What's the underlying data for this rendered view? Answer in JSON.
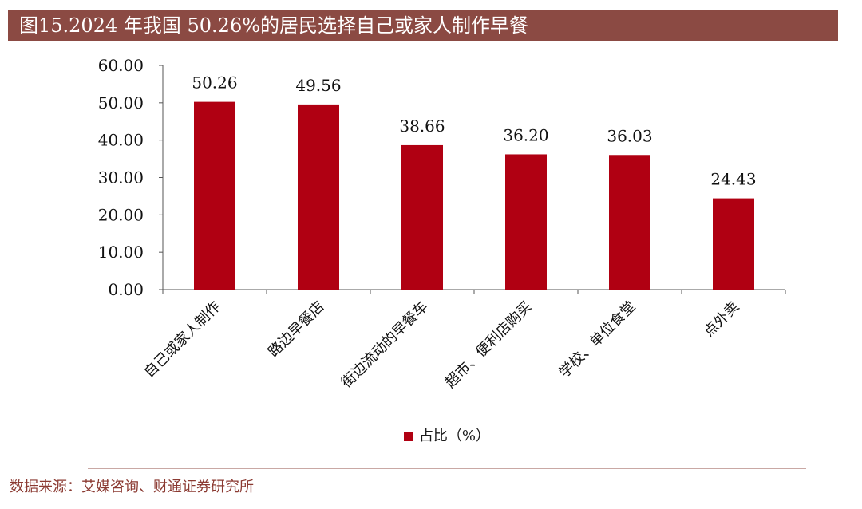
{
  "header": {
    "title": "图15.2024 年我国 50.26%的居民选择自己或家人制作早餐"
  },
  "colors": {
    "title_bg": "#8b4a43",
    "bar": "#b00012",
    "source_text": "#8b3a32"
  },
  "chart_data": {
    "type": "bar",
    "categories": [
      "自己或家人制作",
      "路边早餐店",
      "街边流动的早餐车",
      "超市、便利店购买",
      "学校、单位食堂",
      "点外卖"
    ],
    "series": [
      {
        "name": "占比（%）",
        "values": [
          50.26,
          49.56,
          38.66,
          36.2,
          36.03,
          24.43
        ]
      }
    ],
    "data_labels": [
      "50.26",
      "49.56",
      "38.66",
      "36.20",
      "36.03",
      "24.43"
    ],
    "yticks": [
      "0.00",
      "10.00",
      "20.00",
      "30.00",
      "40.00",
      "50.00",
      "60.00"
    ],
    "ylim": [
      0,
      60
    ],
    "grid": false,
    "legend_position": "bottom"
  },
  "legend": {
    "label": "占比（%）"
  },
  "footer": {
    "source": "数据来源：艾媒咨询、财通证券研究所"
  }
}
